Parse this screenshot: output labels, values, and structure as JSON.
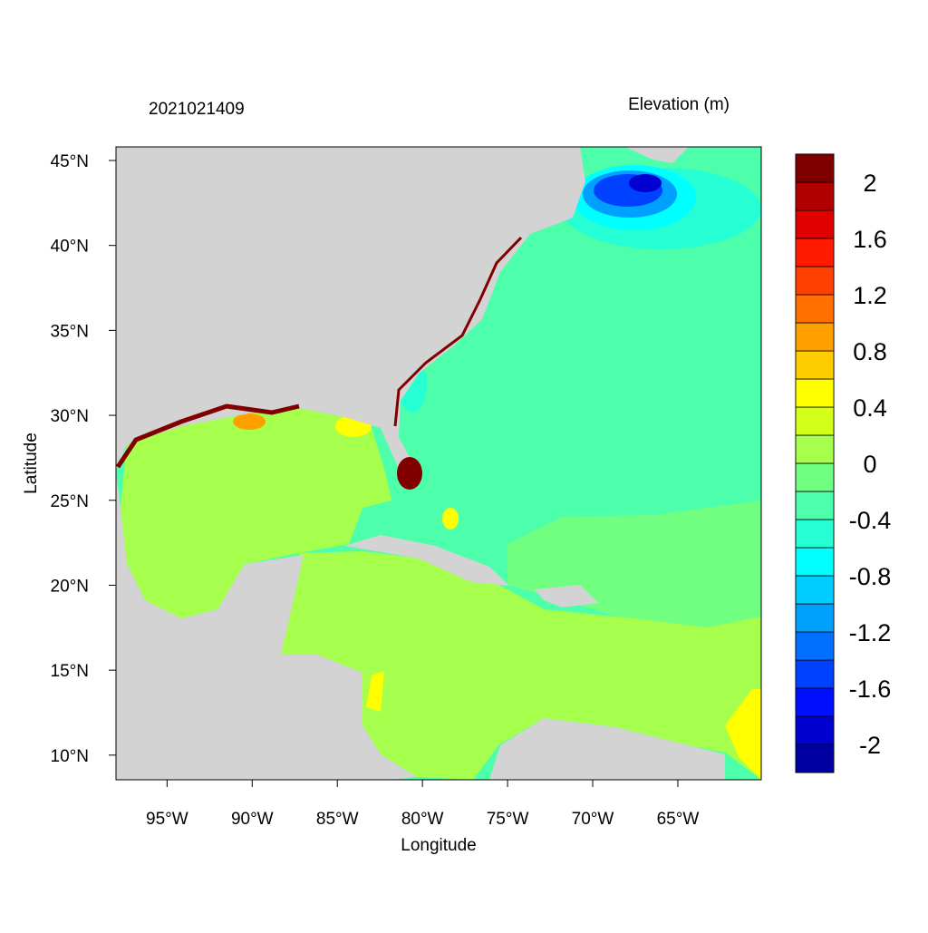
{
  "map": {
    "title_left": "2021021409",
    "title_right": "Elevation (m)",
    "x_label": "Longitude",
    "y_label": "Latitude",
    "xlim": [
      -98,
      -60.1
    ],
    "ylim": [
      8.55,
      45.8
    ],
    "xticks": [
      {
        "value": -95,
        "label": "95°W"
      },
      {
        "value": -90,
        "label": "90°W"
      },
      {
        "value": -85,
        "label": "85°W"
      },
      {
        "value": -80,
        "label": "80°W"
      },
      {
        "value": -75,
        "label": "75°W"
      },
      {
        "value": -70,
        "label": "70°W"
      },
      {
        "value": -65,
        "label": "65°W"
      }
    ],
    "yticks": [
      {
        "value": 10,
        "label": "10°N"
      },
      {
        "value": 15,
        "label": "15°N"
      },
      {
        "value": 20,
        "label": "20°N"
      },
      {
        "value": 25,
        "label": "25°N"
      },
      {
        "value": 30,
        "label": "30°N"
      },
      {
        "value": 35,
        "label": "35°N"
      },
      {
        "value": 40,
        "label": "40°N"
      },
      {
        "value": 45,
        "label": "45°N"
      }
    ],
    "colorbar": {
      "levels": [
        -2,
        -1.8,
        -1.6,
        -1.4,
        -1.2,
        -1,
        -0.8,
        -0.6,
        -0.4,
        -0.2,
        0,
        0.2,
        0.4,
        0.6,
        0.8,
        1,
        1.2,
        1.4,
        1.6,
        1.8,
        2
      ],
      "colors": [
        "#0000a0",
        "#0000d0",
        "#0010ff",
        "#0040ff",
        "#0070ff",
        "#00a0ff",
        "#00ccff",
        "#00ffff",
        "#26ffd4",
        "#4dffaa",
        "#70ff80",
        "#a6ff4d",
        "#d4ff1a",
        "#ffff00",
        "#ffcc00",
        "#ffa000",
        "#ff7000",
        "#ff4000",
        "#ff1a00",
        "#e00000",
        "#b00000",
        "#800000"
      ],
      "ticks": [
        2,
        1.6,
        1.2,
        0.8,
        0.4,
        0,
        -0.4,
        -0.8,
        -1.2,
        -1.6,
        -2
      ]
    }
  }
}
